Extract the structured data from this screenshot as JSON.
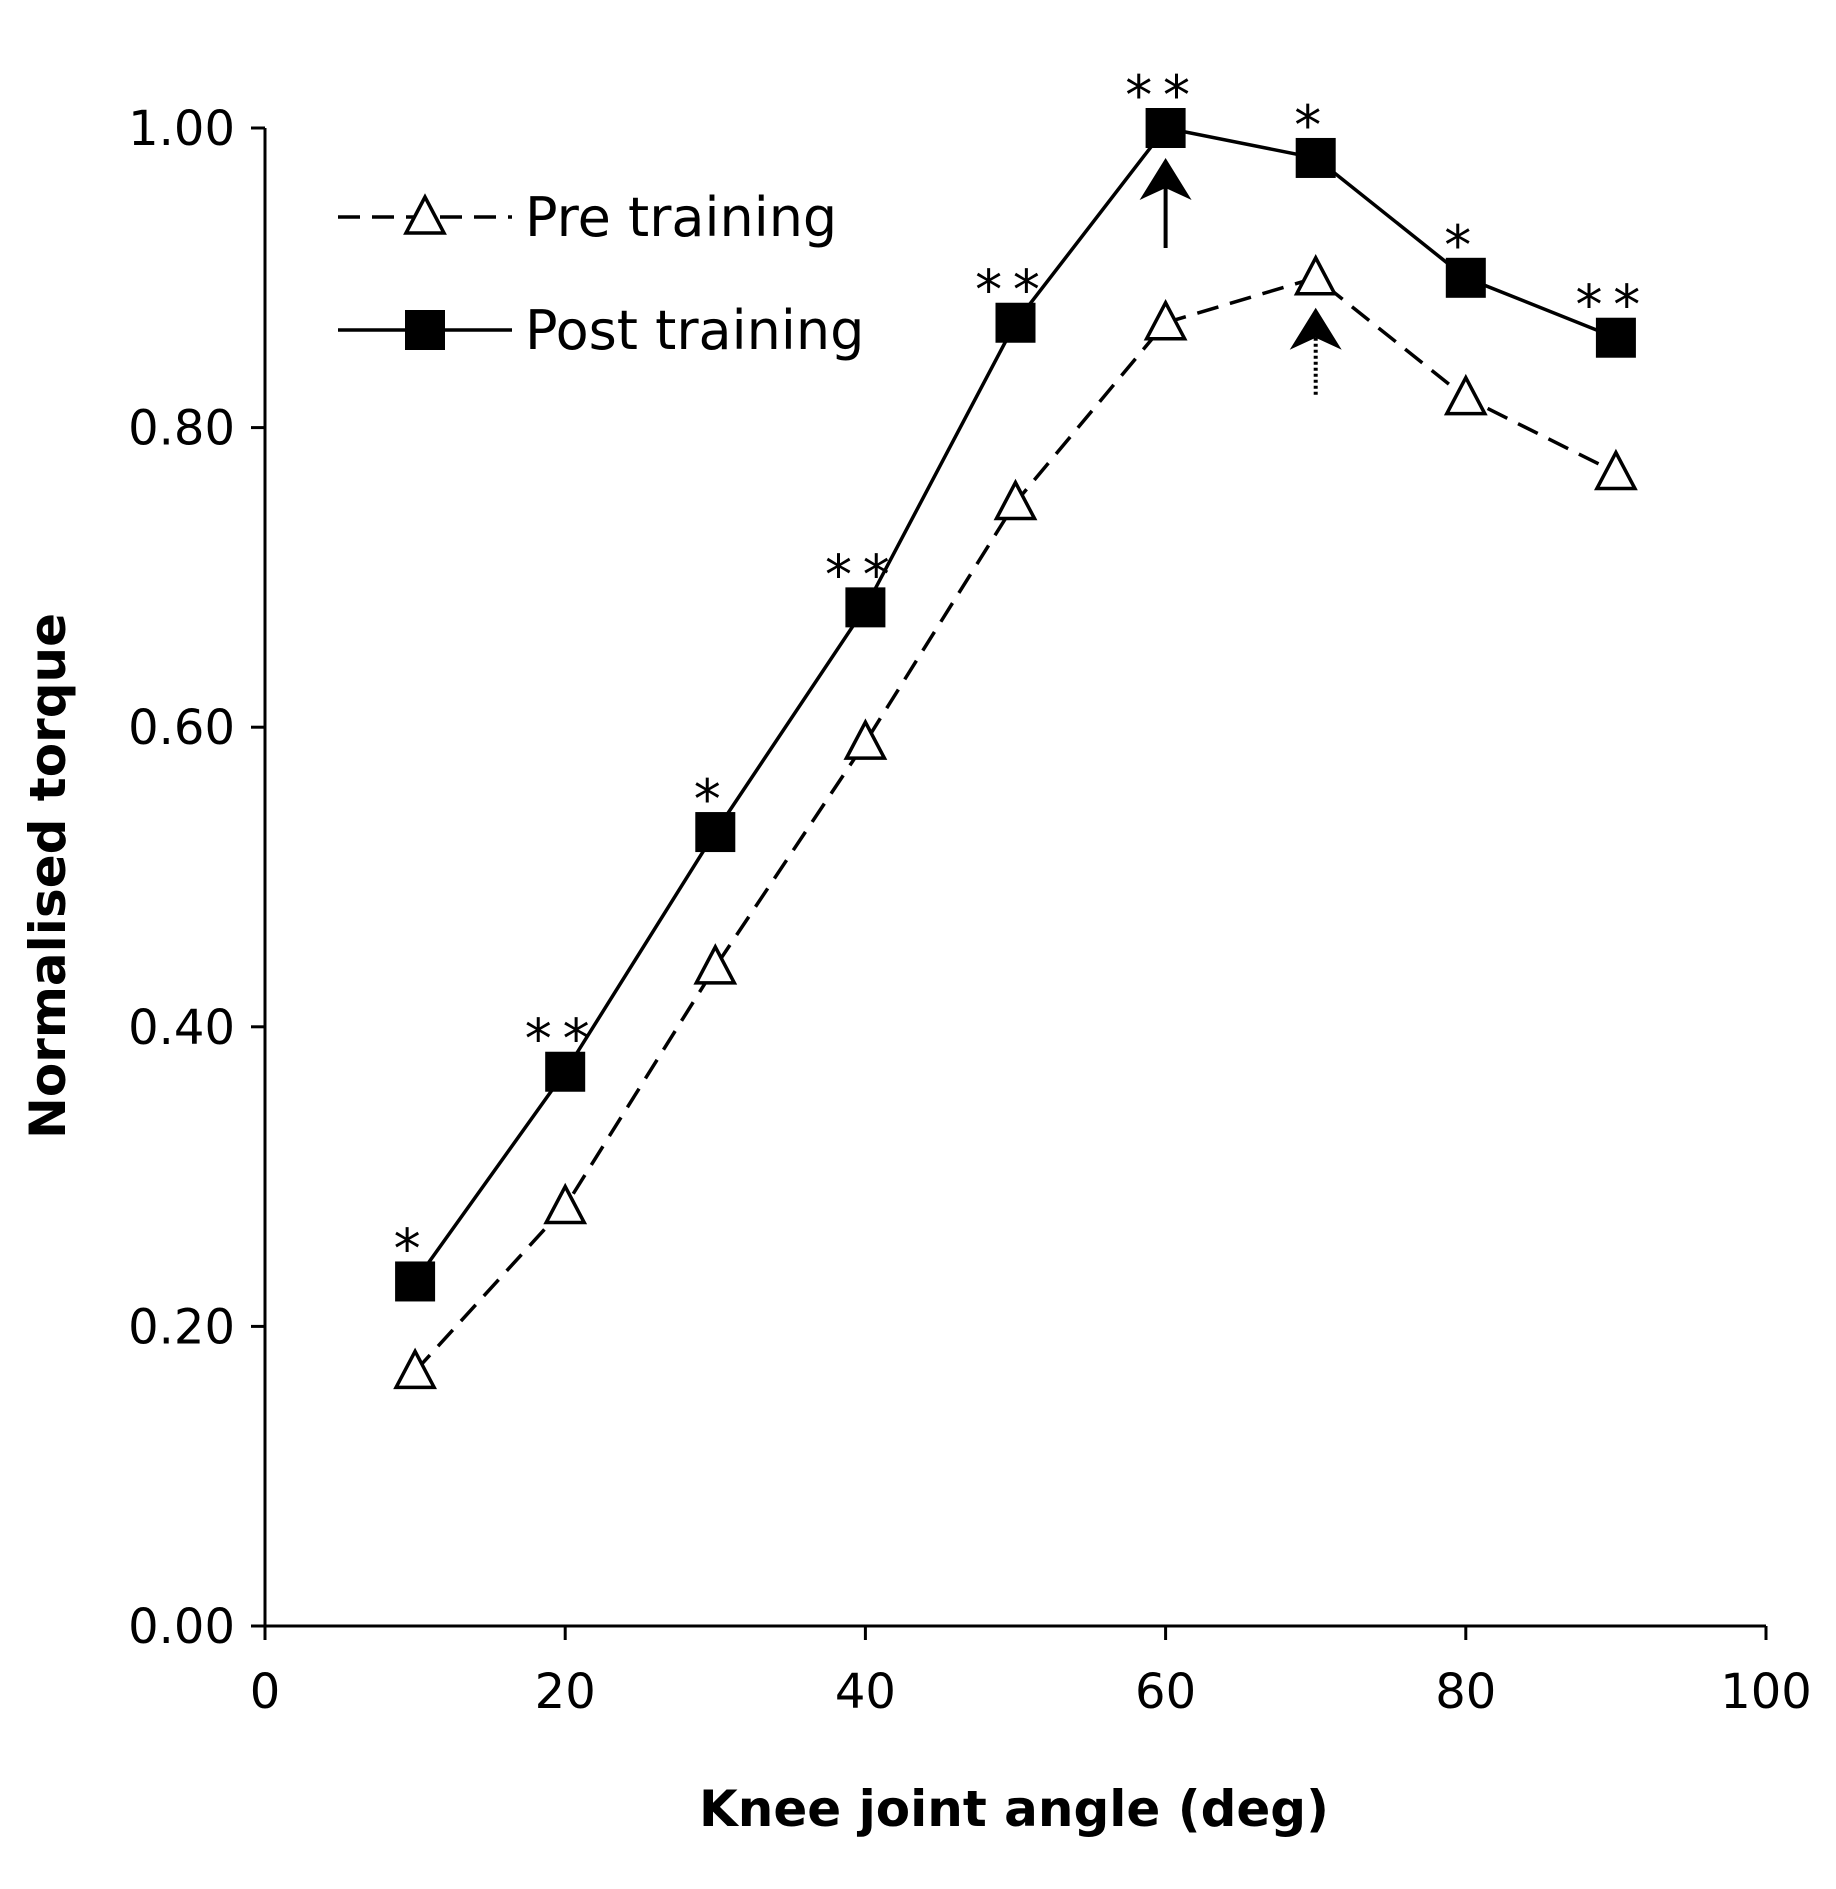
{
  "chart_data": {
    "type": "line",
    "xlabel": "Knee joint angle (deg)",
    "ylabel": "Normalised torque",
    "xlim": [
      0,
      100
    ],
    "ylim": [
      0,
      1.0
    ],
    "x_ticks": [
      "0",
      "20",
      "40",
      "60",
      "80",
      "100"
    ],
    "y_ticks": [
      "0.00",
      "0.20",
      "0.40",
      "0.60",
      "0.80",
      "1.00"
    ],
    "x": [
      10,
      20,
      30,
      40,
      50,
      60,
      70,
      80,
      90
    ],
    "series": [
      {
        "name": "Pre training",
        "values": [
          0.17,
          0.28,
          0.44,
          0.59,
          0.75,
          0.87,
          0.9,
          0.82,
          0.77
        ],
        "marker": "open-triangle",
        "line": "dashed",
        "color": "#000000"
      },
      {
        "name": "Post training",
        "values": [
          0.23,
          0.37,
          0.53,
          0.68,
          0.87,
          1.0,
          0.98,
          0.9,
          0.86
        ],
        "marker": "filled-square",
        "line": "solid",
        "color": "#000000"
      }
    ],
    "significance": [
      "*",
      "**",
      "*",
      "**",
      "**",
      "**",
      "*",
      "*",
      "**"
    ],
    "peak_arrows": [
      {
        "series": "Post training",
        "x": 60,
        "style": "solid"
      },
      {
        "series": "Pre training",
        "x": 70,
        "style": "dotted"
      }
    ],
    "legend_position": "top-left",
    "grid": false
  }
}
